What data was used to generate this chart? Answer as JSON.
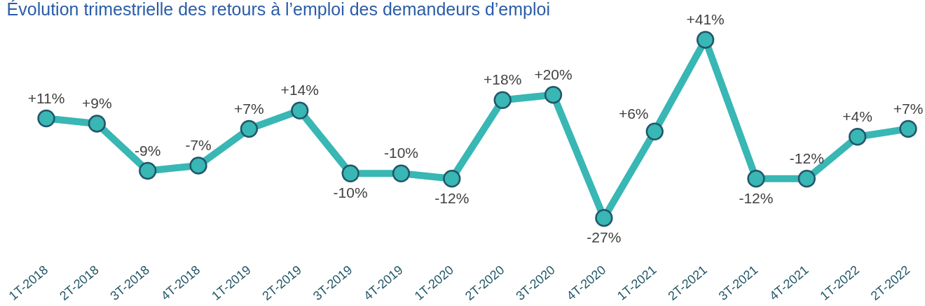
{
  "chart_data": {
    "type": "line",
    "title": "Évolution trimestrielle des retours à l’emploi des demandeurs d’emploi",
    "categories": [
      "1T-2018",
      "2T-2018",
      "3T-2018",
      "4T-2018",
      "1T-2019",
      "2T-2019",
      "3T-2019",
      "4T-2019",
      "1T-2020",
      "2T-2020",
      "3T-2020",
      "4T-2020",
      "1T-2021",
      "2T-2021",
      "3T-2021",
      "4T-2021",
      "1T-2022",
      "2T-2022"
    ],
    "series": [
      {
        "color": "#38b7b4",
        "values": [
          11,
          9,
          -9,
          -7,
          7,
          14,
          -10,
          -10,
          -12,
          18,
          20,
          -27,
          6,
          41,
          -12,
          -12,
          4,
          7
        ],
        "value_labels": [
          "+11%",
          "+9%",
          "-9%",
          "-7%",
          "+7%",
          "+14%",
          "-10%",
          "-10%",
          "-12%",
          "+18%",
          "+20%",
          "-27%",
          "+6%",
          "+41%",
          "-12%",
          "-12%",
          "+4%",
          "+7%"
        ]
      }
    ],
    "marker": "circle",
    "line_style": "solid",
    "grid": false,
    "legend": false,
    "tick_labels": "x"
  }
}
